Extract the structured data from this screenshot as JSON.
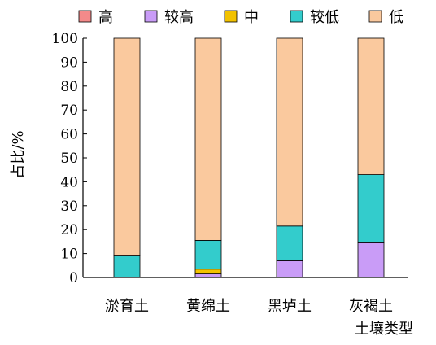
{
  "chart_data": {
    "type": "bar",
    "stacked": true,
    "categories": [
      "淤育土",
      "黄绵土",
      "黑垆土",
      "灰褐土"
    ],
    "series": [
      {
        "name": "高",
        "color": "#f48a8a",
        "values": [
          0,
          0,
          0,
          0
        ]
      },
      {
        "name": "较高",
        "color": "#c99cf7",
        "values": [
          0,
          1.5,
          7,
          14.5
        ]
      },
      {
        "name": "中",
        "color": "#f2c200",
        "values": [
          0,
          2,
          0,
          0
        ]
      },
      {
        "name": "较低",
        "color": "#33cccc",
        "values": [
          9,
          12,
          14.5,
          28.5
        ]
      },
      {
        "name": "低",
        "color": "#fac99e",
        "values": [
          91,
          84.5,
          78.5,
          57
        ]
      }
    ],
    "title": "",
    "xlabel": "土壤类型",
    "ylabel": "占比/%",
    "ylim": [
      0,
      100
    ],
    "yticks": [
      0,
      10,
      20,
      30,
      40,
      50,
      60,
      70,
      80,
      90,
      100
    ],
    "grid": false,
    "legend_position": "top"
  }
}
